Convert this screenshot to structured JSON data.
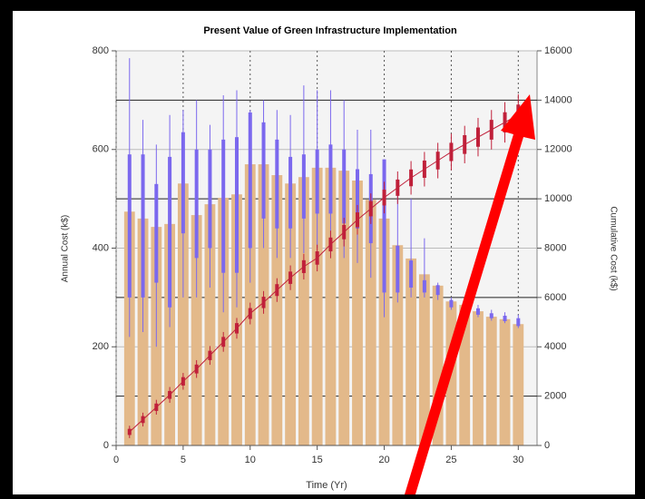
{
  "chart_data": {
    "type": "bar",
    "title": "Present Value of Green Infrastructure Implementation",
    "xlabel": "Time (Yr)",
    "ylabel": "Annual Cost (k$)",
    "y2label": "Cumulative Cost (k$)",
    "x": [
      1,
      2,
      3,
      4,
      5,
      6,
      7,
      8,
      9,
      10,
      11,
      12,
      13,
      14,
      15,
      16,
      17,
      18,
      19,
      20,
      21,
      22,
      23,
      24,
      25,
      26,
      27,
      28,
      29,
      30
    ],
    "xlim": [
      0,
      31.4
    ],
    "xticks": [
      0,
      5,
      10,
      15,
      20,
      25,
      30
    ],
    "ylim": [
      0,
      800
    ],
    "yticks": [
      0,
      200,
      400,
      600,
      800
    ],
    "y2lim": [
      0,
      16000
    ],
    "y2ticks": [
      0,
      2000,
      4000,
      6000,
      8000,
      10000,
      12000,
      14000,
      16000
    ],
    "grid": true,
    "series": [
      {
        "type": "bar",
        "color": "#e3b98a",
        "values": [
          474,
          460,
          443,
          449,
          531,
          467,
          489,
          502,
          509,
          570,
          570,
          548,
          531,
          544,
          563,
          563,
          557,
          537,
          498,
          460,
          406,
          379,
          347,
          324,
          292,
          285,
          272,
          261,
          256,
          246
        ]
      },
      {
        "type": "box",
        "color": "#7b68ee",
        "whisker_low": [
          220,
          230,
          200,
          240,
          300,
          300,
          320,
          270,
          280,
          330,
          400,
          380,
          380,
          390,
          400,
          390,
          380,
          370,
          340,
          260,
          290,
          300,
          300,
          295,
          275,
          270,
          260,
          253,
          248,
          238
        ],
        "box_low": [
          300,
          300,
          330,
          280,
          430,
          380,
          400,
          350,
          350,
          400,
          460,
          440,
          440,
          460,
          470,
          470,
          450,
          440,
          410,
          310,
          310,
          320,
          310,
          305,
          280,
          275,
          265,
          258,
          252,
          242
        ],
        "box_high": [
          590,
          590,
          530,
          585,
          635,
          600,
          600,
          620,
          625,
          675,
          655,
          620,
          585,
          590,
          600,
          610,
          600,
          560,
          550,
          580,
          405,
          375,
          335,
          325,
          295,
          290,
          278,
          268,
          263,
          258
        ],
        "whisker_high": [
          785,
          660,
          610,
          670,
          680,
          700,
          650,
          710,
          720,
          680,
          700,
          680,
          670,
          730,
          720,
          720,
          700,
          640,
          640,
          580,
          540,
          500,
          420,
          330,
          300,
          300,
          285,
          275,
          270,
          265
        ]
      },
      {
        "type": "line",
        "axis": "y2",
        "color": "#c0203a",
        "values": [
          550,
          1050,
          1550,
          2050,
          2600,
          3100,
          3650,
          4200,
          4750,
          5350,
          5800,
          6300,
          6800,
          7250,
          7600,
          8150,
          8650,
          9150,
          9600,
          10050,
          10450,
          10850,
          11200,
          11550,
          11900,
          12200,
          12500,
          12800,
          13100,
          13400
        ],
        "errors": [
          250,
          280,
          300,
          320,
          340,
          360,
          380,
          400,
          420,
          440,
          460,
          480,
          500,
          520,
          540,
          560,
          580,
          600,
          620,
          640,
          660,
          680,
          700,
          720,
          740,
          760,
          780,
          800,
          820,
          840
        ]
      }
    ]
  }
}
